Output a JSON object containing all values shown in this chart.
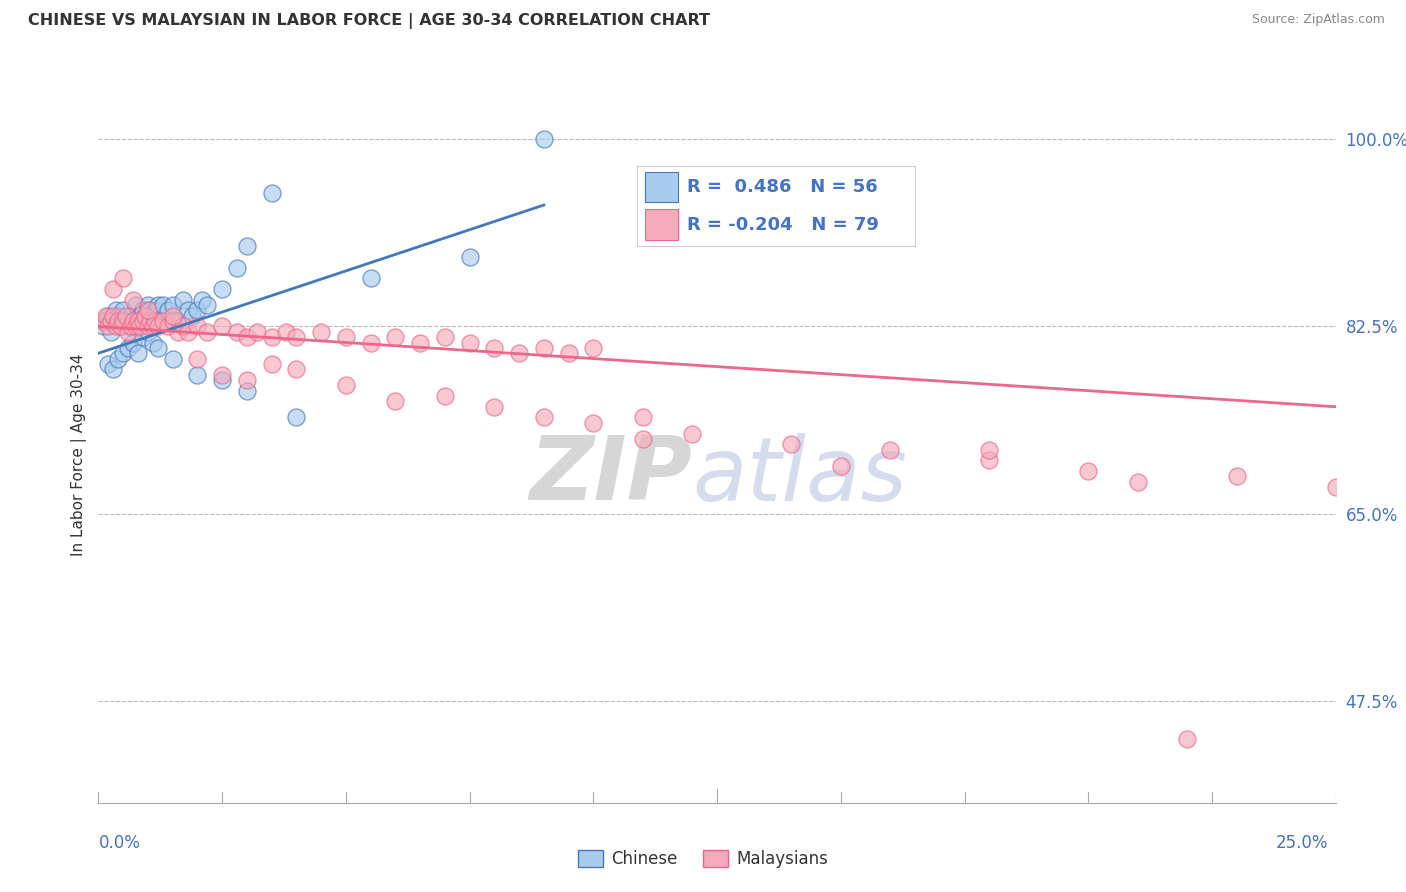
{
  "title": "CHINESE VS MALAYSIAN IN LABOR FORCE | AGE 30-34 CORRELATION CHART",
  "source": "Source: ZipAtlas.com",
  "ylabel": "In Labor Force | Age 30-34",
  "right_yticks": [
    47.5,
    65.0,
    82.5,
    100.0
  ],
  "right_ytick_labels": [
    "47.5%",
    "65.0%",
    "82.5%",
    "100.0%"
  ],
  "xlim": [
    0.0,
    25.0
  ],
  "ylim": [
    38.0,
    103.0
  ],
  "chinese_color": "#A8CCEE",
  "malaysian_color": "#F4AABB",
  "chinese_line_color": "#4477BB",
  "malaysian_line_color": "#EE6688",
  "legend_R_chinese": "R =  0.486",
  "legend_N_chinese": "N = 56",
  "legend_R_malaysian": "R = -0.204",
  "legend_N_malaysian": "N = 79",
  "watermark_zip": "ZIP",
  "watermark_atlas": "atlas",
  "chinese_x": [
    0.1,
    0.15,
    0.2,
    0.25,
    0.3,
    0.35,
    0.4,
    0.45,
    0.5,
    0.55,
    0.6,
    0.65,
    0.7,
    0.75,
    0.8,
    0.85,
    0.9,
    0.95,
    1.0,
    1.05,
    1.1,
    1.15,
    1.2,
    1.3,
    1.4,
    1.5,
    1.6,
    1.7,
    1.8,
    1.9,
    2.0,
    2.1,
    2.2,
    2.5,
    2.8,
    3.0,
    3.5,
    0.2,
    0.3,
    0.4,
    0.5,
    0.6,
    0.7,
    0.8,
    0.9,
    1.0,
    1.1,
    1.2,
    1.5,
    2.0,
    2.5,
    3.0,
    4.0,
    5.5,
    7.5,
    9.0
  ],
  "chinese_y": [
    82.5,
    83.0,
    83.5,
    82.0,
    83.0,
    84.0,
    83.5,
    82.5,
    84.0,
    83.0,
    82.5,
    83.5,
    83.0,
    84.5,
    83.0,
    83.5,
    84.0,
    83.5,
    84.5,
    84.0,
    83.5,
    84.0,
    84.5,
    84.5,
    84.0,
    84.5,
    83.0,
    85.0,
    84.0,
    83.5,
    84.0,
    85.0,
    84.5,
    86.0,
    88.0,
    90.0,
    95.0,
    79.0,
    78.5,
    79.5,
    80.0,
    80.5,
    81.0,
    80.0,
    81.5,
    82.0,
    81.0,
    80.5,
    79.5,
    78.0,
    77.5,
    76.5,
    74.0,
    87.0,
    89.0,
    100.0
  ],
  "malaysian_x": [
    0.1,
    0.15,
    0.2,
    0.25,
    0.3,
    0.35,
    0.4,
    0.45,
    0.5,
    0.55,
    0.6,
    0.65,
    0.7,
    0.75,
    0.8,
    0.85,
    0.9,
    0.95,
    1.0,
    1.05,
    1.1,
    1.15,
    1.2,
    1.3,
    1.4,
    1.5,
    1.6,
    1.7,
    1.8,
    2.0,
    2.2,
    2.5,
    2.8,
    3.0,
    3.2,
    3.5,
    3.8,
    4.0,
    4.5,
    5.0,
    5.5,
    6.0,
    6.5,
    7.0,
    7.5,
    8.0,
    8.5,
    9.0,
    9.5,
    10.0,
    0.3,
    0.5,
    0.7,
    1.0,
    1.5,
    2.0,
    2.5,
    3.0,
    3.5,
    4.0,
    5.0,
    6.0,
    7.0,
    8.0,
    9.0,
    10.0,
    11.0,
    12.0,
    14.0,
    16.0,
    18.0,
    20.0,
    23.0,
    11.0,
    15.0,
    18.0,
    21.0,
    25.0,
    22.0
  ],
  "malaysian_y": [
    83.0,
    83.5,
    82.5,
    83.0,
    83.5,
    82.5,
    83.0,
    82.5,
    83.0,
    83.5,
    82.0,
    82.5,
    83.0,
    82.5,
    83.0,
    82.5,
    83.0,
    83.5,
    82.5,
    83.0,
    82.5,
    83.0,
    82.5,
    83.0,
    82.5,
    83.0,
    82.0,
    82.5,
    82.0,
    82.5,
    82.0,
    82.5,
    82.0,
    81.5,
    82.0,
    81.5,
    82.0,
    81.5,
    82.0,
    81.5,
    81.0,
    81.5,
    81.0,
    81.5,
    81.0,
    80.5,
    80.0,
    80.5,
    80.0,
    80.5,
    86.0,
    87.0,
    85.0,
    84.0,
    83.5,
    79.5,
    78.0,
    77.5,
    79.0,
    78.5,
    77.0,
    75.5,
    76.0,
    75.0,
    74.0,
    73.5,
    74.0,
    72.5,
    71.5,
    71.0,
    70.0,
    69.0,
    68.5,
    72.0,
    69.5,
    71.0,
    68.0,
    67.5,
    44.0
  ]
}
